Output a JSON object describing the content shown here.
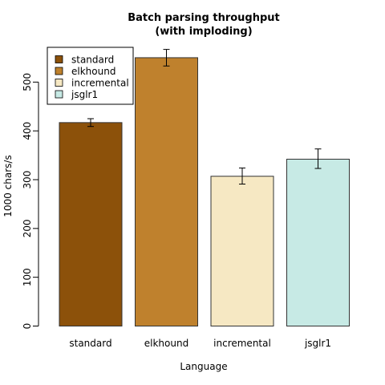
{
  "chart_data": {
    "type": "bar",
    "title": "Batch parsing throughput",
    "subtitle": "(with imploding)",
    "xlabel": "Language",
    "ylabel": "1000 chars/s",
    "ylim": [
      0,
      570
    ],
    "yticks": [
      0,
      100,
      200,
      300,
      400,
      500
    ],
    "categories": [
      "standard",
      "elkhound",
      "incremental",
      "jsglr1"
    ],
    "values": [
      417,
      550,
      307,
      342
    ],
    "errors": [
      [
        409,
        425
      ],
      [
        533,
        567
      ],
      [
        291,
        324
      ],
      [
        323,
        363
      ]
    ],
    "colors": [
      "#8c510a",
      "#bf812d",
      "#f6e8c3",
      "#c7eae5"
    ],
    "legend": {
      "placement": "top-left",
      "entries": [
        "standard",
        "elkhound",
        "incremental",
        "jsglr1"
      ]
    },
    "grid": false
  }
}
